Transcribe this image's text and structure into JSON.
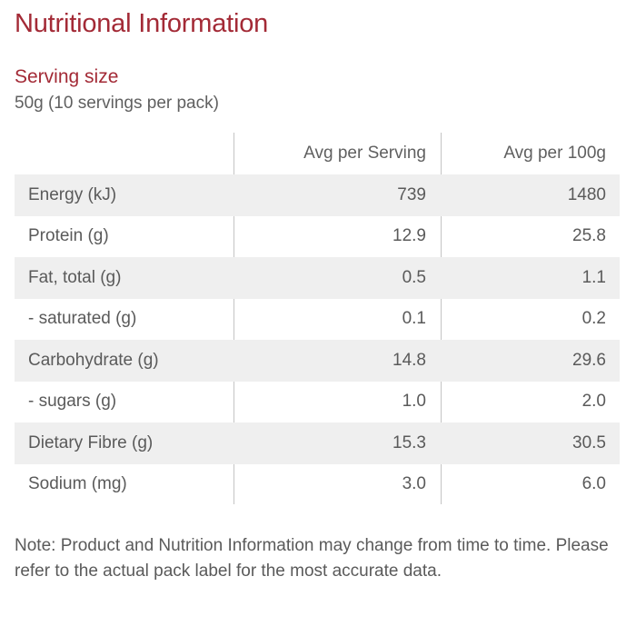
{
  "title": "Nutritional Information",
  "serving": {
    "heading": "Serving size",
    "value": "50g (10 servings per pack)"
  },
  "table": {
    "headers": [
      "",
      "Avg per Serving",
      "Avg per 100g"
    ],
    "rows": [
      {
        "label": "Energy (kJ)",
        "per_serving": "739",
        "per_100g": "1480"
      },
      {
        "label": "Protein (g)",
        "per_serving": "12.9",
        "per_100g": "25.8"
      },
      {
        "label": "Fat, total (g)",
        "per_serving": "0.5",
        "per_100g": "1.1"
      },
      {
        "label": "- saturated (g)",
        "per_serving": "0.1",
        "per_100g": "0.2"
      },
      {
        "label": "Carbohydrate (g)",
        "per_serving": "14.8",
        "per_100g": "29.6"
      },
      {
        "label": "- sugars (g)",
        "per_serving": "1.0",
        "per_100g": "2.0"
      },
      {
        "label": "Dietary Fibre (g)",
        "per_serving": "15.3",
        "per_100g": "30.5"
      },
      {
        "label": "Sodium (mg)",
        "per_serving": "3.0",
        "per_100g": "6.0"
      }
    ]
  },
  "note": "Note: Product and Nutrition Information may change from time to time. Please refer to the actual pack label for the most accurate data.",
  "colors": {
    "title": "#a32a36",
    "text": "#5a5a5a",
    "row_shade": "#efefef",
    "divider": "#c4c4c4"
  }
}
